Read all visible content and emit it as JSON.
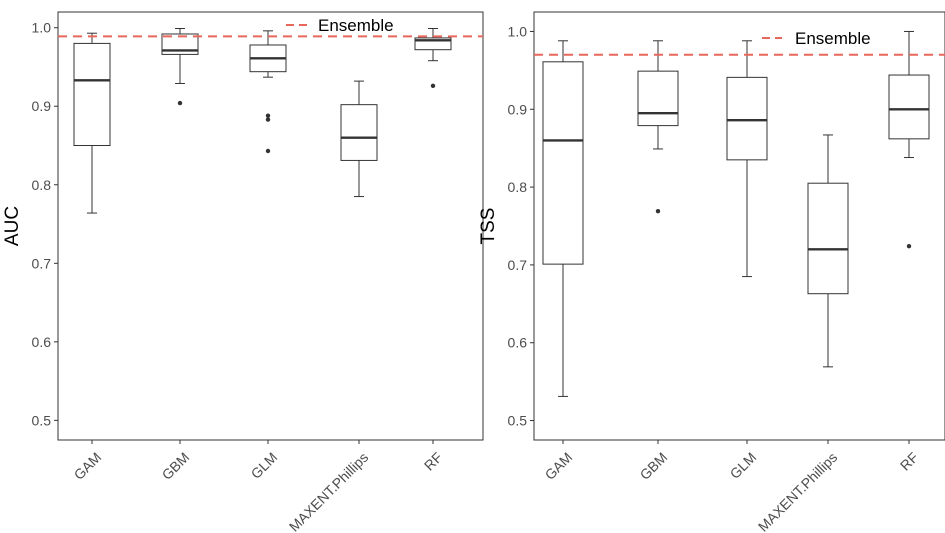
{
  "chart_data": [
    {
      "type": "boxplot",
      "ylabel": "AUC",
      "ylim": [
        0.475,
        1.02
      ],
      "yticks": [
        "0.5",
        "0.6",
        "0.7",
        "0.8",
        "0.9",
        "1.0"
      ],
      "categories": [
        "GAM",
        "GBM",
        "GLM",
        "MAXENT.Phillips",
        "RF"
      ],
      "boxes": [
        {
          "category": "GAM",
          "whisker_low": 0.764,
          "q1": 0.85,
          "median": 0.933,
          "q3": 0.98,
          "whisker_high": 0.993,
          "outliers": []
        },
        {
          "category": "GBM",
          "whisker_low": 0.929,
          "q1": 0.966,
          "median": 0.971,
          "q3": 0.992,
          "whisker_high": 0.999,
          "outliers": [
            0.904
          ]
        },
        {
          "category": "GLM",
          "whisker_low": 0.937,
          "q1": 0.944,
          "median": 0.961,
          "q3": 0.978,
          "whisker_high": 0.996,
          "outliers": [
            0.888,
            0.883,
            0.843
          ]
        },
        {
          "category": "MAXENT.Phillips",
          "whisker_low": 0.785,
          "q1": 0.831,
          "median": 0.86,
          "q3": 0.902,
          "whisker_high": 0.932,
          "outliers": []
        },
        {
          "category": "RF",
          "whisker_low": 0.958,
          "q1": 0.972,
          "median": 0.984,
          "q3": 0.987,
          "whisker_high": 0.999,
          "outliers": [
            0.926
          ]
        }
      ],
      "reference_line": {
        "label": "Ensemble",
        "value": 0.989,
        "color": "#e8675a",
        "style": "dashed"
      },
      "legend_position": "top-right",
      "grid": false
    },
    {
      "type": "boxplot",
      "ylabel": "TSS",
      "ylim": [
        0.475,
        1.025
      ],
      "yticks": [
        "0.5",
        "0.6",
        "0.7",
        "0.8",
        "0.9",
        "1.0"
      ],
      "categories": [
        "GAM",
        "GBM",
        "GLM",
        "MAXENT.Phillips",
        "RF"
      ],
      "boxes": [
        {
          "category": "GAM",
          "whisker_low": 0.531,
          "q1": 0.701,
          "median": 0.86,
          "q3": 0.961,
          "whisker_high": 0.988,
          "outliers": []
        },
        {
          "category": "GBM",
          "whisker_low": 0.849,
          "q1": 0.879,
          "median": 0.895,
          "q3": 0.949,
          "whisker_high": 0.988,
          "outliers": [
            0.769
          ]
        },
        {
          "category": "GLM",
          "whisker_low": 0.685,
          "q1": 0.835,
          "median": 0.886,
          "q3": 0.941,
          "whisker_high": 0.988,
          "outliers": []
        },
        {
          "category": "MAXENT.Phillips",
          "whisker_low": 0.569,
          "q1": 0.663,
          "median": 0.72,
          "q3": 0.805,
          "whisker_high": 0.867,
          "outliers": []
        },
        {
          "category": "RF",
          "whisker_low": 0.838,
          "q1": 0.862,
          "median": 0.9,
          "q3": 0.944,
          "whisker_high": 1.0,
          "outliers": [
            0.724
          ]
        }
      ],
      "reference_line": {
        "label": "Ensemble",
        "value": 0.97,
        "color": "#e8675a",
        "style": "dashed"
      },
      "legend_position": "top-right",
      "grid": false
    }
  ]
}
